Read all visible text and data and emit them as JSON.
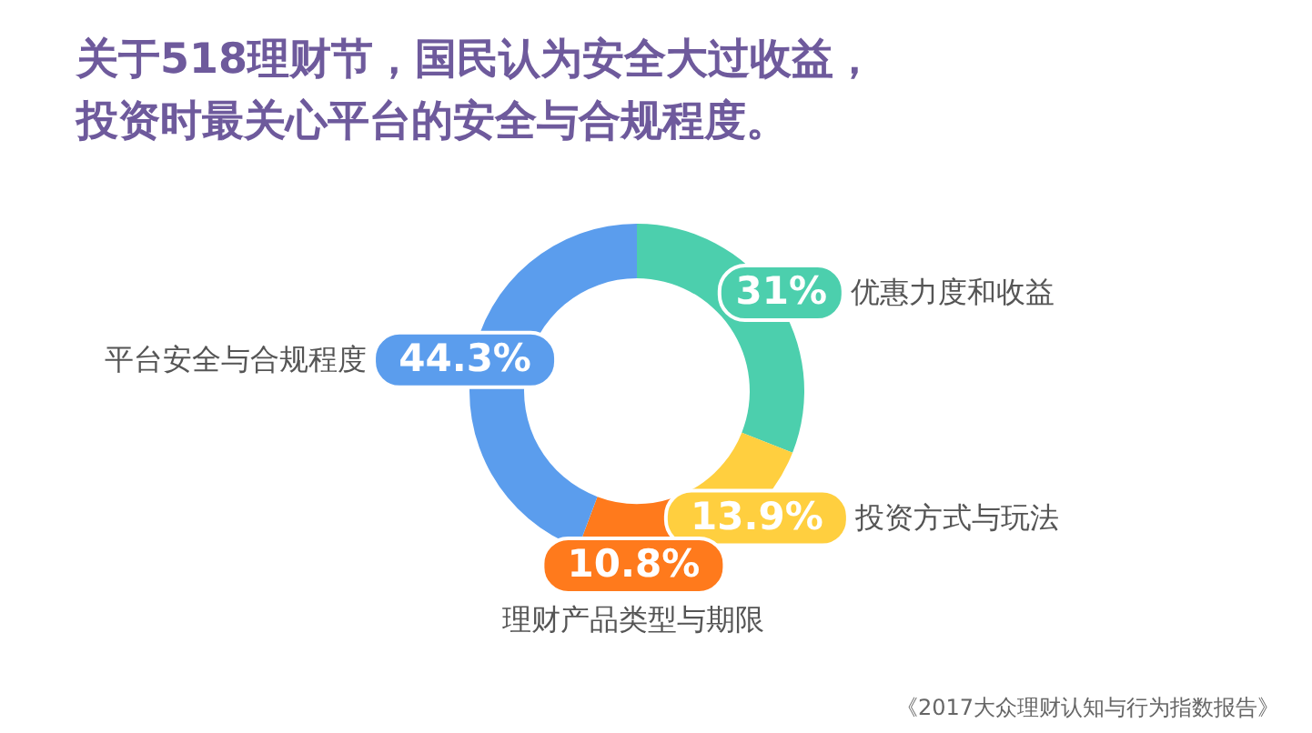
{
  "chart_data": {
    "type": "donut",
    "title": "关于518理财节，国民认为安全大过收益，投资时最关心平台的安全与合规程度。",
    "categories": [
      "优惠力度和收益",
      "投资方式与玩法",
      "理财产品类型与期限",
      "平台安全与合规程度"
    ],
    "values": [
      31,
      13.9,
      10.8,
      44.3
    ],
    "colors": [
      "#4ccfad",
      "#ffcf3f",
      "#ff7a1c",
      "#5b9ded"
    ],
    "value_labels": [
      "31%",
      "13.9%",
      "10.8%",
      "44.3%"
    ],
    "annotations": [
      "《2017大众理财认知与行为指数报告》"
    ]
  }
}
